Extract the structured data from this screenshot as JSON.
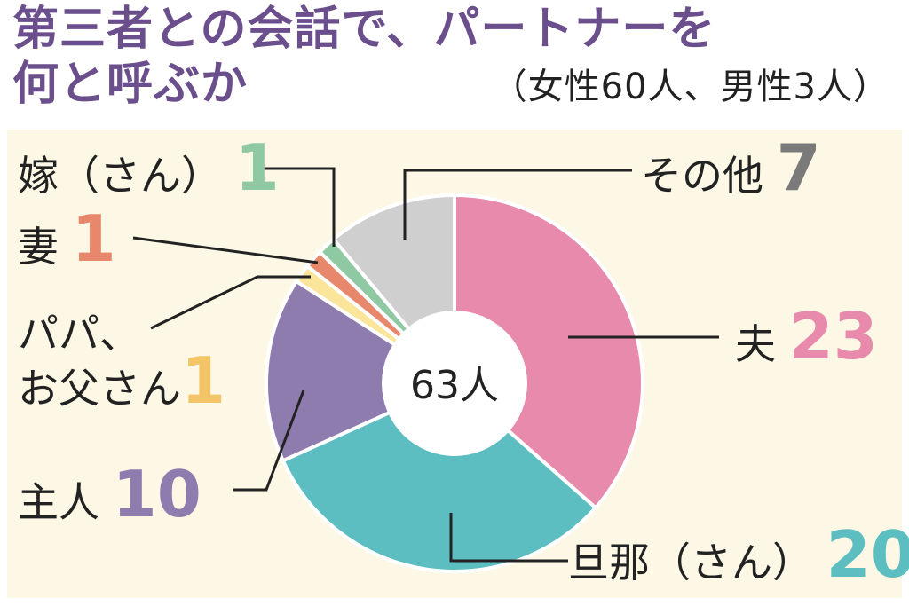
{
  "header": {
    "title_line1": "第三者との会話で、パートナーを",
    "title_line2": "何と呼ぶか",
    "subtitle": "（女性60人、男性3人）"
  },
  "chart_data": {
    "type": "pie",
    "donut": true,
    "center_label": "63人",
    "total": 63,
    "slices": [
      {
        "label": "夫",
        "value": 23,
        "color": "#e78aab",
        "value_color": "#e78aab"
      },
      {
        "label": "旦那（さん）",
        "value": 20,
        "color": "#5dbec2",
        "value_color": "#5dbec2"
      },
      {
        "label": "主人",
        "value": 10,
        "color": "#8f7cae",
        "value_color": "#8f7cae"
      },
      {
        "label": "パパ、お父さん",
        "label_lines": [
          "パパ、",
          "お父さん"
        ],
        "value": 1,
        "color": "#fbe59a",
        "value_color": "#f3c567"
      },
      {
        "label": "妻",
        "value": 1,
        "color": "#e7876b",
        "value_color": "#e7876b"
      },
      {
        "label": "嫁（さん）",
        "value": 1,
        "color": "#8fc9a4",
        "value_color": "#8fc9a4"
      },
      {
        "label": "その他",
        "value": 7,
        "color": "#cfcfcf",
        "value_color": "#7a7a7a"
      }
    ],
    "legend_placement": "callouts"
  }
}
